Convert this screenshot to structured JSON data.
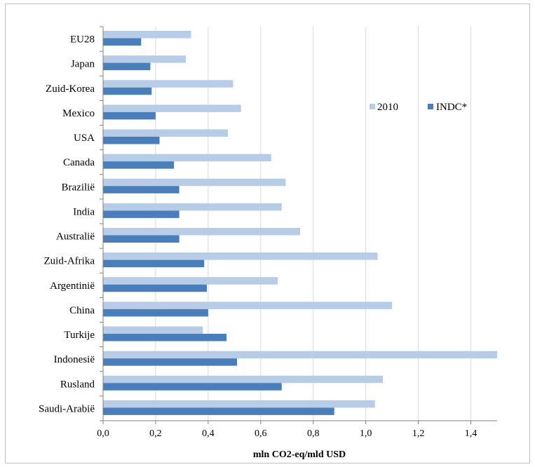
{
  "chart_data": {
    "type": "bar",
    "orientation": "horizontal",
    "categories": [
      "EU28",
      "Japan",
      "Zuid-Korea",
      "Mexico",
      "USA",
      "Canada",
      "Braziliё",
      "India",
      "Australiё",
      "Zuid-Afrika",
      "Argentiniё",
      "China",
      "Turkije",
      "Indonesiё",
      "Rusland",
      "Saudi-Arabiё"
    ],
    "series": [
      {
        "name": "2010",
        "color": "#b7cce6",
        "values": [
          0.335,
          0.315,
          0.495,
          0.525,
          0.475,
          0.64,
          0.695,
          0.68,
          0.75,
          1.045,
          0.665,
          1.1,
          0.38,
          1.5,
          1.065,
          1.035
        ]
      },
      {
        "name": "INDC*",
        "color": "#4a7ebb",
        "values": [
          0.145,
          0.18,
          0.185,
          0.2,
          0.215,
          0.27,
          0.29,
          0.29,
          0.29,
          0.385,
          0.395,
          0.4,
          0.47,
          0.51,
          0.68,
          0.88
        ]
      }
    ],
    "xlabel": "mln CO2-eq/mld  USD",
    "xlim": [
      0,
      1.5
    ],
    "xticks": [
      "0,0",
      "0,2",
      "0,4",
      "0,6",
      "0,8",
      "1,0",
      "1,2",
      "1,4"
    ],
    "grid": "vertical",
    "legend_position": "upper-right"
  }
}
